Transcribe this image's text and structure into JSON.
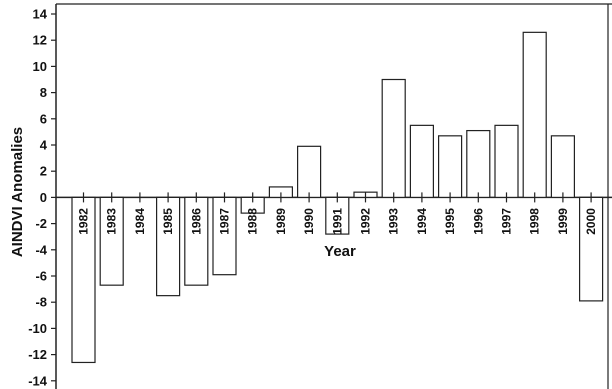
{
  "chart_data": {
    "type": "bar",
    "title": "",
    "xlabel": "Year",
    "ylabel": "AINDVI Anomalies",
    "ylim": [
      -14,
      14
    ],
    "yticks": [
      14,
      12,
      10,
      8,
      6,
      4,
      2,
      0,
      -2,
      -4,
      -6,
      -8,
      -10,
      -12,
      -14
    ],
    "grid": false,
    "categories": [
      "1982",
      "1983",
      "1984",
      "1985",
      "1986",
      "1987",
      "1988",
      "1989",
      "1990",
      "1991",
      "1992",
      "1993",
      "1994",
      "1995",
      "1996",
      "1997",
      "1998",
      "1999",
      "2000"
    ],
    "values": [
      -12.6,
      -6.7,
      0,
      -7.5,
      -6.7,
      -5.9,
      -1.2,
      0.8,
      3.9,
      -2.8,
      0.4,
      9.0,
      5.5,
      4.7,
      5.1,
      5.5,
      12.6,
      4.7,
      -7.9
    ],
    "colors": {
      "bar_fill": "#ffffff",
      "bar_stroke": "#222222",
      "axis": "#222222"
    }
  }
}
